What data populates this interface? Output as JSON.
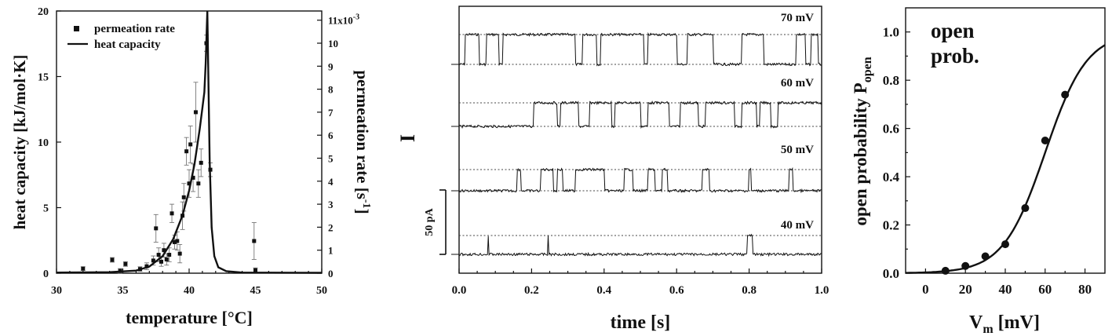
{
  "chart_data": [
    {
      "type": "scatter",
      "xlabel": "temperature [°C]",
      "ylabel": "heat capacity [kJ/mol·K]",
      "y2label": "permeation rate [s",
      "y2label_sup": "-1",
      "y2label_end": "]",
      "xlim": [
        30,
        50
      ],
      "ylim": [
        0,
        20
      ],
      "y2lim": [
        0,
        0.0114
      ],
      "x_ticks": [
        "30",
        "35",
        "40",
        "45",
        "50"
      ],
      "y_ticks": [
        "0",
        "5",
        "10",
        "15",
        "20"
      ],
      "y2_ticks": [
        "0",
        "1",
        "2",
        "3",
        "4",
        "5",
        "6",
        "7",
        "8",
        "9",
        "10"
      ],
      "y2_top_tick": "11x10",
      "y2_top_tick_sup": "-3",
      "legend": [
        "permeation rate",
        "heat capacity"
      ],
      "legend_position": "top-left",
      "series": [
        {
          "name": "heat capacity",
          "kind": "line",
          "points": [
            [
              30,
              0.05
            ],
            [
              34,
              0.08
            ],
            [
              36,
              0.2
            ],
            [
              37,
              0.5
            ],
            [
              38,
              1.3
            ],
            [
              38.8,
              2.6
            ],
            [
              39.5,
              4.4
            ],
            [
              40,
              6.3
            ],
            [
              40.4,
              8.3
            ],
            [
              40.8,
              11.0
            ],
            [
              41.0,
              12.6
            ],
            [
              41.15,
              13.8
            ],
            [
              41.25,
              16.0
            ],
            [
              41.32,
              18.3
            ],
            [
              41.37,
              20.0
            ],
            [
              41.45,
              15.0
            ],
            [
              41.55,
              8.5
            ],
            [
              41.7,
              3.5
            ],
            [
              41.9,
              1.3
            ],
            [
              42.2,
              0.45
            ],
            [
              42.8,
              0.15
            ],
            [
              44,
              0.05
            ],
            [
              50,
              0.03
            ]
          ]
        },
        {
          "name": "permeation rate",
          "kind": "scatter_errorbars",
          "points": [
            {
              "x": 32.0,
              "y": 0.0002,
              "err": 8e-05
            },
            {
              "x": 34.2,
              "y": 0.00058,
              "err": 0.0001
            },
            {
              "x": 34.8,
              "y": 0.0001,
              "err": 0.0001
            },
            {
              "x": 35.2,
              "y": 0.0004,
              "err": 0.0001
            },
            {
              "x": 36.3,
              "y": 0.00018,
              "err": 0.0001
            },
            {
              "x": 36.8,
              "y": 0.0003,
              "err": 0.00015
            },
            {
              "x": 37.3,
              "y": 0.00055,
              "err": 0.0002
            },
            {
              "x": 37.5,
              "y": 0.00195,
              "err": 0.0006
            },
            {
              "x": 37.7,
              "y": 0.0008,
              "err": 0.0003
            },
            {
              "x": 37.9,
              "y": 0.0005,
              "err": 0.0002
            },
            {
              "x": 38.1,
              "y": 0.001,
              "err": 0.0003
            },
            {
              "x": 38.3,
              "y": 0.0006,
              "err": 0.00025
            },
            {
              "x": 38.5,
              "y": 0.0008,
              "err": 0.0003
            },
            {
              "x": 38.7,
              "y": 0.0026,
              "err": 0.0004
            },
            {
              "x": 38.9,
              "y": 0.00135,
              "err": 0.0003
            },
            {
              "x": 39.1,
              "y": 0.0014,
              "err": 0.0004
            },
            {
              "x": 39.3,
              "y": 0.00085,
              "err": 0.0004
            },
            {
              "x": 39.5,
              "y": 0.0025,
              "err": 0.0006
            },
            {
              "x": 39.6,
              "y": 0.0033,
              "err": 0.0006
            },
            {
              "x": 39.8,
              "y": 0.0053,
              "err": 0.0006
            },
            {
              "x": 40.0,
              "y": 0.0039,
              "err": 0.0006
            },
            {
              "x": 40.1,
              "y": 0.0056,
              "err": 0.0008
            },
            {
              "x": 40.3,
              "y": 0.00415,
              "err": 0.0006
            },
            {
              "x": 40.5,
              "y": 0.007,
              "err": 0.0013
            },
            {
              "x": 40.7,
              "y": 0.0039,
              "err": 0.0006
            },
            {
              "x": 40.9,
              "y": 0.0048,
              "err": 0.0006
            },
            {
              "x": 41.3,
              "y": 0.01,
              "err": 0.00035
            },
            {
              "x": 41.6,
              "y": 0.0045,
              "err": 0.0003
            },
            {
              "x": 44.9,
              "y": 0.0014,
              "err": 0.0008
            },
            {
              "x": 45.0,
              "y": 0.00013,
              "err": 0.0001
            }
          ]
        }
      ]
    },
    {
      "type": "line",
      "xlabel": "time [s]",
      "ylabel": "I",
      "xlim": [
        0,
        1.0
      ],
      "x_ticks": [
        "0.0",
        "0.2",
        "0.4",
        "0.6",
        "0.8",
        "1.0"
      ],
      "scale_bar": "50 pA",
      "traces": [
        {
          "name": "70 mV",
          "events": [
            [
              0.016,
              0.055
            ],
            [
              0.075,
              0.11
            ],
            [
              0.12,
              0.32
            ],
            [
              0.34,
              0.38
            ],
            [
              0.39,
              0.51
            ],
            [
              0.52,
              0.6
            ],
            [
              0.63,
              0.7
            ],
            [
              0.78,
              0.84
            ],
            [
              0.93,
              0.955
            ],
            [
              0.97,
              0.99
            ]
          ]
        },
        {
          "name": "60 mV",
          "events": [
            [
              0.205,
              0.27
            ],
            [
              0.28,
              0.33
            ],
            [
              0.36,
              0.42
            ],
            [
              0.43,
              0.5
            ],
            [
              0.52,
              0.58
            ],
            [
              0.61,
              0.66
            ],
            [
              0.68,
              0.76
            ],
            [
              0.78,
              0.82
            ],
            [
              0.83,
              0.86
            ],
            [
              0.88,
              1.0
            ]
          ]
        },
        {
          "name": "50 mV",
          "events": [
            [
              0.16,
              0.17
            ],
            [
              0.225,
              0.26
            ],
            [
              0.27,
              0.285
            ],
            [
              0.32,
              0.34
            ],
            [
              0.34,
              0.4
            ],
            [
              0.455,
              0.48
            ],
            [
              0.52,
              0.54
            ],
            [
              0.56,
              0.575
            ],
            [
              0.67,
              0.69
            ],
            [
              0.8,
              0.805
            ],
            [
              0.91,
              0.92
            ]
          ]
        },
        {
          "name": "40 mV",
          "events": [
            [
              0.08,
              0.082
            ],
            [
              0.245,
              0.247
            ],
            [
              0.795,
              0.81
            ]
          ]
        }
      ]
    },
    {
      "type": "line",
      "xlabel": "V",
      "xlabel_sub": "m",
      "xlabel_end": " [mV]",
      "ylabel": "open probability P",
      "ylabel_sub": "open",
      "annotation_line1": "open",
      "annotation_line2": "prob.",
      "xlim": [
        -10,
        90
      ],
      "ylim": [
        0,
        1.1
      ],
      "x_ticks": [
        "0",
        "20",
        "40",
        "60",
        "80"
      ],
      "y_ticks": [
        "0.0",
        "0.2",
        "0.4",
        "0.6",
        "0.8",
        "1.0"
      ],
      "fit": {
        "v_half": 60,
        "slope": 10.5
      },
      "points": [
        [
          10,
          0.01
        ],
        [
          20,
          0.03
        ],
        [
          30,
          0.07
        ],
        [
          40,
          0.12
        ],
        [
          50,
          0.27
        ],
        [
          60,
          0.55
        ],
        [
          70,
          0.74
        ]
      ]
    }
  ]
}
